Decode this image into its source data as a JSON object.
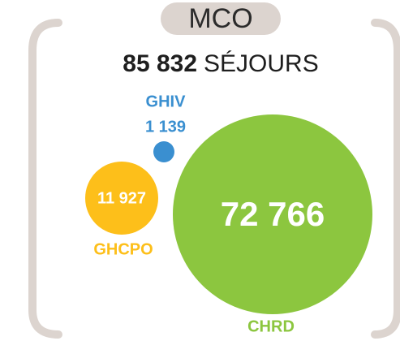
{
  "header": {
    "title": "MCO"
  },
  "total": {
    "value": "85 832",
    "unit": "SÉJOURS"
  },
  "entities": [
    {
      "name": "GHIV",
      "value": "1 139"
    },
    {
      "name": "GHCPO",
      "value": "11 927"
    },
    {
      "name": "CHRD",
      "value": "72 766"
    }
  ]
}
